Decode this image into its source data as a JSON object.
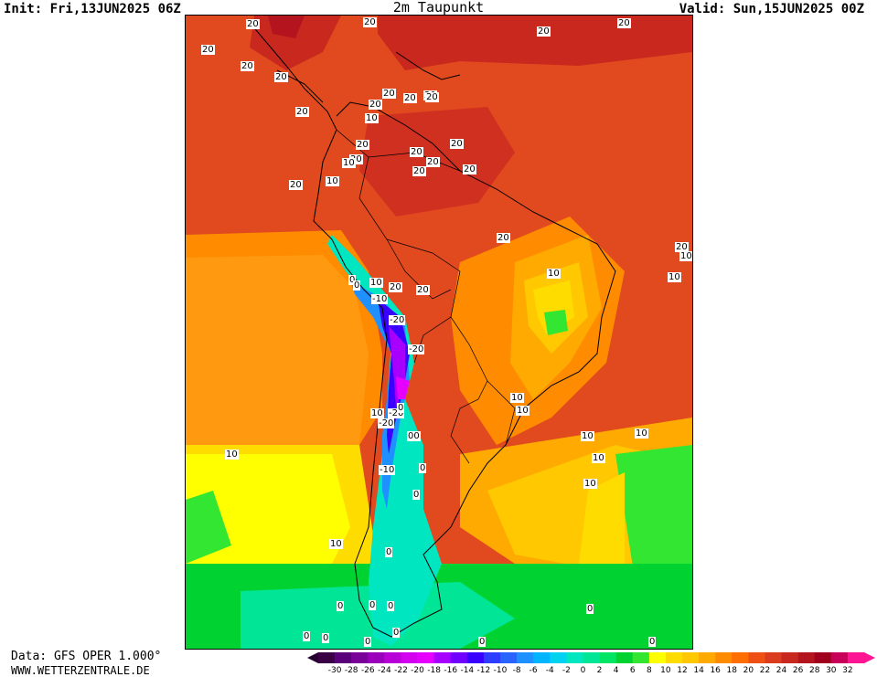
{
  "header": {
    "init_label": "Init: Fri,13JUN2025 06Z",
    "title": "2m Taupunkt",
    "valid_label": "Valid: Sun,15JUN2025 00Z"
  },
  "footer": {
    "source": "Data: GFS OPER 1.000°",
    "website": "WWW.WETTERZENTRALE.DE"
  },
  "colorbar": {
    "ticks": [
      "-30",
      "-28",
      "-26",
      "-24",
      "-22",
      "-20",
      "-18",
      "-16",
      "-14",
      "-12",
      "-10",
      "-8",
      "-6",
      "-4",
      "-2",
      "0",
      "2",
      "4",
      "6",
      "8",
      "10",
      "12",
      "14",
      "16",
      "18",
      "20",
      "22",
      "24",
      "26",
      "28",
      "30",
      "32"
    ],
    "colors": [
      "#3a0046",
      "#5a007a",
      "#7a009a",
      "#9a00bc",
      "#b800d8",
      "#d400f0",
      "#e600ff",
      "#a800ff",
      "#7000ff",
      "#3a00ff",
      "#2d3cff",
      "#2a64ff",
      "#1e90ff",
      "#00b4ff",
      "#00d2f0",
      "#00e6c0",
      "#00e696",
      "#00e664",
      "#00d232",
      "#32e632",
      "#ffff00",
      "#ffdc00",
      "#ffc800",
      "#ffaa00",
      "#ff8c00",
      "#ff6e00",
      "#f05014",
      "#dc3c1e",
      "#c8281e",
      "#b4141e",
      "#a0001e",
      "#c8005a",
      "#ff1493"
    ],
    "left_arrow_color": "#280030",
    "right_arrow_color": "#ff1493"
  },
  "contour_labels": [
    {
      "text": "20"
    },
    {
      "text": "20"
    },
    {
      "text": "20"
    },
    {
      "text": "20"
    },
    {
      "text": "20"
    },
    {
      "text": "20"
    },
    {
      "text": "20"
    },
    {
      "text": "20"
    },
    {
      "text": "20"
    },
    {
      "text": "20"
    },
    {
      "text": "20"
    },
    {
      "text": "10"
    },
    {
      "text": "20"
    },
    {
      "text": "20"
    },
    {
      "text": "20"
    },
    {
      "text": "20"
    },
    {
      "text": "20"
    },
    {
      "text": "10"
    },
    {
      "text": "10"
    },
    {
      "text": "20"
    },
    {
      "text": "20"
    },
    {
      "text": "20"
    },
    {
      "text": "20"
    },
    {
      "text": "20"
    },
    {
      "text": "20"
    },
    {
      "text": "10"
    },
    {
      "text": "20"
    },
    {
      "text": "0"
    },
    {
      "text": "0"
    },
    {
      "text": "10"
    },
    {
      "text": "20"
    },
    {
      "text": "-10"
    },
    {
      "text": "20"
    },
    {
      "text": "-20"
    },
    {
      "text": "-20"
    },
    {
      "text": "10"
    },
    {
      "text": "10"
    },
    {
      "text": "10"
    },
    {
      "text": "-20"
    },
    {
      "text": "-20"
    },
    {
      "text": "0"
    },
    {
      "text": "00"
    },
    {
      "text": "10"
    },
    {
      "text": "10"
    },
    {
      "text": "10"
    },
    {
      "text": "10"
    },
    {
      "text": "-10"
    },
    {
      "text": "0"
    },
    {
      "text": "0"
    },
    {
      "text": "10"
    },
    {
      "text": "10"
    },
    {
      "text": "10"
    },
    {
      "text": "0"
    },
    {
      "text": "10"
    },
    {
      "text": "0"
    },
    {
      "text": "0"
    },
    {
      "text": "0"
    },
    {
      "text": "0"
    },
    {
      "text": "0"
    },
    {
      "text": "0"
    },
    {
      "text": "0"
    },
    {
      "text": "0"
    },
    {
      "text": "0"
    },
    {
      "text": "0"
    }
  ]
}
